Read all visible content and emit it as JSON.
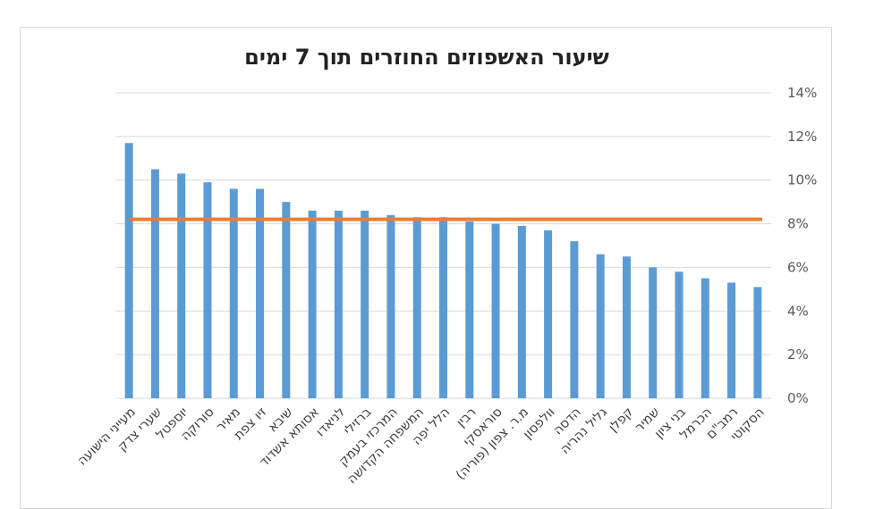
{
  "chart_data": {
    "type": "bar",
    "title": "שיעור האשפוזים החוזרים תוך 7 ימים",
    "categories": [
      "מעייני הישועה",
      "שערי צדק",
      "יוספטל",
      "סורוקה",
      "מאיר",
      "זיו צפת",
      "שיבא",
      "אסותא אשדוד",
      "לניאדו",
      "ברזילי",
      "המרכזי בעמק",
      "המשפחה הקדושה",
      "הלל יפה",
      "רבין",
      "סוראסקי",
      "מ.ר. צפון (פוריה)",
      "וולפסון",
      "הדסה",
      "גליל נהריה",
      "קפלן",
      "שמיר",
      "בני ציון",
      "הכרמל",
      "רמב\"ם",
      "הסקוטי"
    ],
    "values": [
      11.7,
      10.5,
      10.3,
      9.9,
      9.6,
      9.6,
      9.0,
      8.6,
      8.6,
      8.6,
      8.4,
      8.3,
      8.3,
      8.1,
      8.0,
      7.9,
      7.7,
      7.2,
      6.6,
      6.5,
      6.0,
      5.8,
      5.5,
      5.3,
      5.1
    ],
    "average_line": 8.2,
    "ylim": [
      0,
      14
    ],
    "yticks": [
      "0%",
      "2%",
      "4%",
      "6%",
      "8%",
      "10%",
      "12%",
      "14%"
    ],
    "ytick_values": [
      0,
      2,
      4,
      6,
      8,
      10,
      12,
      14
    ],
    "grid": true,
    "colors": {
      "bar": "#5b9bd5",
      "average_line": "#ed7d31",
      "grid": "#d9d9d9"
    }
  }
}
